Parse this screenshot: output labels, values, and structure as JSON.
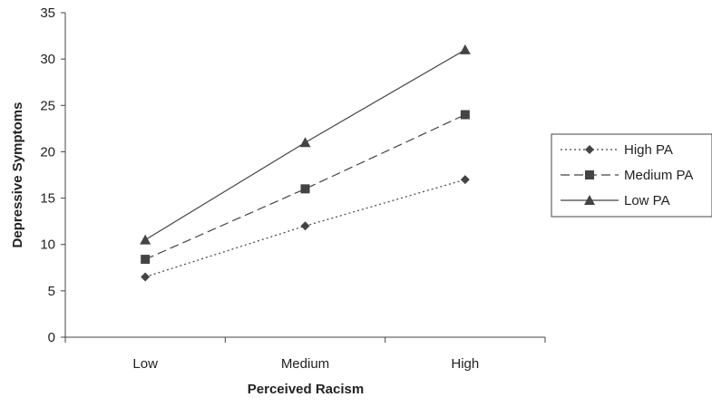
{
  "chart_data": {
    "type": "line",
    "categories": [
      "Low",
      "Medium",
      "High"
    ],
    "series": [
      {
        "name": "High PA",
        "values": [
          6.5,
          12,
          17
        ],
        "marker": "diamond",
        "line_style": "dotted",
        "color": "#444444"
      },
      {
        "name": "Medium PA",
        "values": [
          8.4,
          16,
          24
        ],
        "marker": "square",
        "line_style": "dashed",
        "color": "#444444"
      },
      {
        "name": "Low PA",
        "values": [
          10.5,
          21,
          31
        ],
        "marker": "triangle",
        "line_style": "solid",
        "color": "#444444"
      }
    ],
    "title": "",
    "xlabel": "Perceived Racism",
    "ylabel": "Depressive Symptoms",
    "ylim": [
      0,
      35
    ],
    "yticks": [
      0,
      5,
      10,
      15,
      20,
      25,
      30,
      35
    ],
    "grid": false,
    "legend_position": "right"
  }
}
